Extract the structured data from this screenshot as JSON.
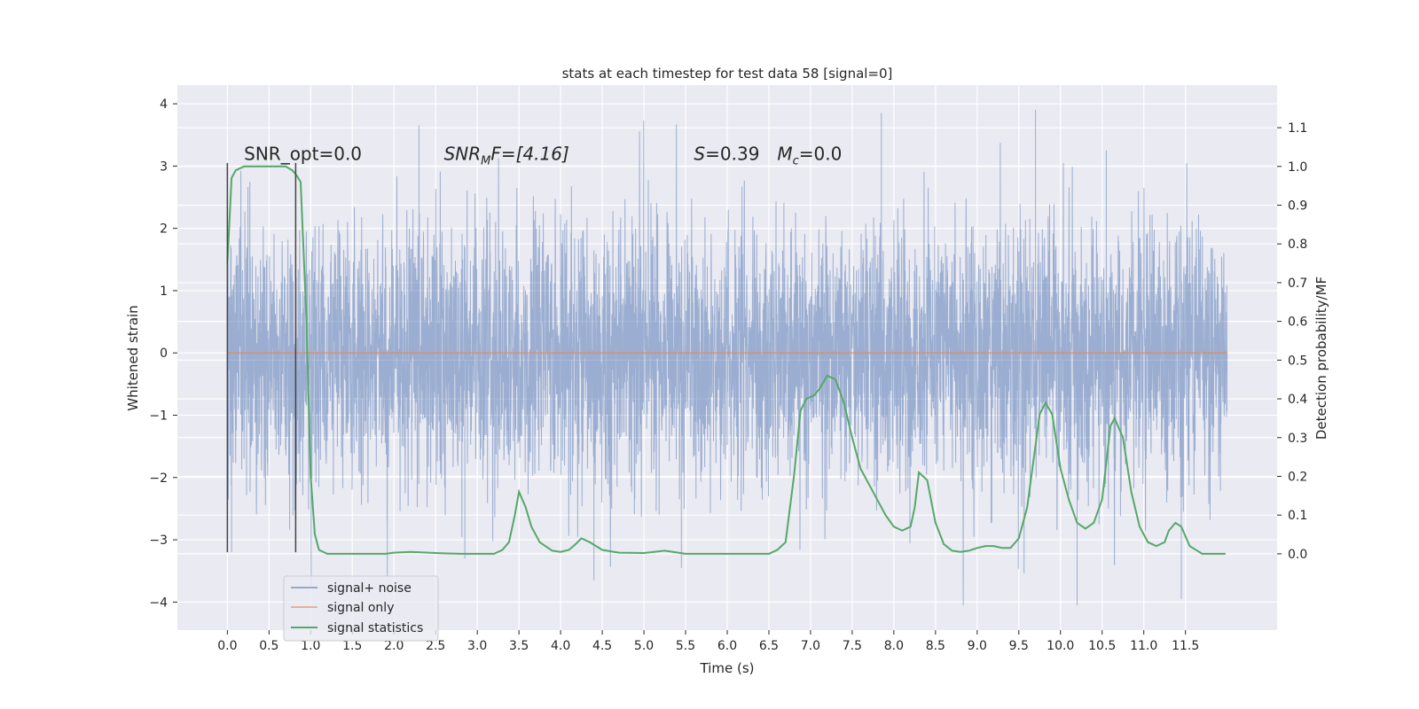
{
  "chart_data": {
    "type": "line",
    "title": "stats at each timestep for test data 58 [signal=0]",
    "xlabel": "Time (s)",
    "ylabel": "Whitened strain",
    "y2label": "Detection probability/MF",
    "xlim": [
      -0.6,
      12.6
    ],
    "ylim": [
      -4.45,
      4.3
    ],
    "y2lim": [
      -0.197,
      1.21
    ],
    "x_ticks": [
      0.0,
      0.5,
      1.0,
      1.5,
      2.0,
      2.5,
      3.0,
      3.5,
      4.0,
      4.5,
      5.0,
      5.5,
      6.0,
      6.5,
      7.0,
      7.5,
      8.0,
      8.5,
      9.0,
      9.5,
      10.0,
      10.5,
      11.0,
      11.5
    ],
    "x_tick_labels": [
      "0.0",
      "0.5",
      "1.0",
      "1.5",
      "2.0",
      "2.5",
      "3.0",
      "3.5",
      "4.0",
      "4.5",
      "5.0",
      "5.5",
      "6.0",
      "6.5",
      "7.0",
      "7.5",
      "8.0",
      "8.5",
      "9.0",
      "9.5",
      "10.0",
      "10.5",
      "11.0",
      "11.5"
    ],
    "y_ticks": [
      -4,
      -3,
      -2,
      -1,
      0,
      1,
      2,
      3,
      4
    ],
    "y_tick_labels": [
      "−4",
      "−3",
      "−2",
      "−1",
      "0",
      "1",
      "2",
      "3",
      "4"
    ],
    "y2_ticks": [
      0.0,
      0.1,
      0.2,
      0.3,
      0.4,
      0.5,
      0.6,
      0.7,
      0.8,
      0.9,
      1.0,
      1.1
    ],
    "y2_tick_labels": [
      "0.0",
      "0.1",
      "0.2",
      "0.3",
      "0.4",
      "0.5",
      "0.6",
      "0.7",
      "0.8",
      "0.9",
      "1.0",
      "1.1"
    ],
    "grid": true,
    "legend_position": "lower-left",
    "series": [
      {
        "name": "signal+ noise",
        "color": "#4c72b0",
        "axis": "left",
        "x_range": [
          0.0,
          12.0
        ],
        "y_range": [
          -4.05,
          3.9
        ],
        "peaks": [
          {
            "x": 0.05,
            "y": -3.2
          },
          {
            "x": 1.92,
            "y": -3.6
          },
          {
            "x": 2.3,
            "y": 3.65
          },
          {
            "x": 2.85,
            "y": -3.3
          },
          {
            "x": 4.4,
            "y": -3.65
          },
          {
            "x": 5.45,
            "y": -3.45
          },
          {
            "x": 7.85,
            "y": 3.85
          },
          {
            "x": 10.2,
            "y": -4.05
          },
          {
            "x": 10.55,
            "y": 3.25
          },
          {
            "x": 11.45,
            "y": -3.95
          },
          {
            "x": 9.7,
            "y": 3.9
          }
        ]
      },
      {
        "name": "signal only",
        "color": "#dd8452",
        "axis": "left",
        "x": [
          0.0,
          12.0
        ],
        "y": [
          0.0,
          0.0
        ]
      },
      {
        "name": "signal statistics",
        "color": "#55a868",
        "axis": "right",
        "x": [
          0.0,
          0.05,
          0.1,
          0.2,
          0.3,
          0.5,
          0.7,
          0.78,
          0.82,
          0.88,
          0.95,
          1.0,
          1.05,
          1.1,
          1.2,
          1.5,
          1.7,
          1.9,
          2.0,
          2.2,
          2.5,
          2.8,
          3.0,
          3.2,
          3.3,
          3.38,
          3.45,
          3.5,
          3.58,
          3.65,
          3.75,
          3.9,
          4.0,
          4.1,
          4.18,
          4.25,
          4.35,
          4.5,
          4.7,
          5.0,
          5.25,
          5.5,
          6.0,
          6.3,
          6.5,
          6.6,
          6.7,
          6.8,
          6.88,
          6.95,
          7.05,
          7.12,
          7.2,
          7.3,
          7.4,
          7.5,
          7.6,
          7.7,
          7.8,
          7.9,
          8.0,
          8.1,
          8.2,
          8.25,
          8.3,
          8.4,
          8.5,
          8.6,
          8.7,
          8.8,
          8.9,
          9.0,
          9.1,
          9.2,
          9.3,
          9.4,
          9.5,
          9.6,
          9.7,
          9.75,
          9.82,
          9.9,
          10.0,
          10.1,
          10.2,
          10.3,
          10.4,
          10.5,
          10.6,
          10.65,
          10.75,
          10.85,
          10.95,
          11.05,
          11.15,
          11.25,
          11.3,
          11.38,
          11.45,
          11.55,
          11.7,
          11.8,
          11.9,
          11.98
        ],
        "y": [
          0.75,
          0.97,
          0.99,
          1.0,
          1.0,
          1.0,
          1.0,
          0.99,
          0.98,
          0.96,
          0.6,
          0.2,
          0.05,
          0.01,
          0.0,
          0.0,
          0.0,
          0.0,
          0.003,
          0.005,
          0.002,
          0.0,
          0.0,
          0.0,
          0.01,
          0.03,
          0.1,
          0.16,
          0.12,
          0.07,
          0.03,
          0.008,
          0.005,
          0.01,
          0.025,
          0.04,
          0.03,
          0.01,
          0.003,
          0.002,
          0.008,
          0.0,
          0.0,
          0.0,
          0.0,
          0.01,
          0.03,
          0.2,
          0.37,
          0.4,
          0.41,
          0.43,
          0.46,
          0.45,
          0.39,
          0.3,
          0.22,
          0.18,
          0.14,
          0.1,
          0.07,
          0.06,
          0.07,
          0.12,
          0.21,
          0.19,
          0.08,
          0.025,
          0.008,
          0.005,
          0.008,
          0.015,
          0.02,
          0.02,
          0.015,
          0.015,
          0.04,
          0.12,
          0.28,
          0.36,
          0.39,
          0.36,
          0.22,
          0.14,
          0.08,
          0.065,
          0.08,
          0.14,
          0.33,
          0.35,
          0.3,
          0.16,
          0.07,
          0.03,
          0.02,
          0.03,
          0.06,
          0.08,
          0.07,
          0.02,
          0.0,
          0.0,
          0.0,
          0.0
        ]
      }
    ],
    "vertical_lines": [
      {
        "x": 0.0,
        "y_from": -3.2,
        "y_to": 3.05,
        "color": "#444444"
      },
      {
        "x": 0.82,
        "y_from": -3.2,
        "y_to": 3.05,
        "color": "#444444"
      }
    ],
    "annotations": [
      {
        "id": "snr-opt",
        "x": 0.2,
        "y": 3.1,
        "text": "SNR_opt=0.0"
      },
      {
        "id": "snr-mf",
        "x": 2.6,
        "y": 3.1,
        "text_parts": [
          "SNR",
          "M",
          "F=[4.16]"
        ]
      },
      {
        "id": "s-value",
        "x": 5.6,
        "y": 3.1,
        "text_parts": [
          "S",
          "=0.39"
        ]
      },
      {
        "id": "mc-value",
        "x": 6.6,
        "y": 3.1,
        "text_parts": [
          "M",
          "c",
          "=0.0"
        ]
      }
    ]
  }
}
